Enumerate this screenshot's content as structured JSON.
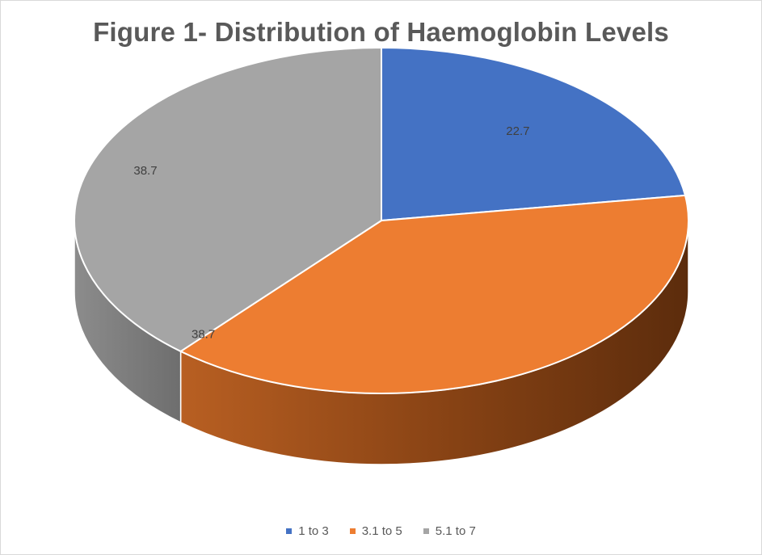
{
  "chart_data": {
    "type": "pie",
    "title": "Figure 1- Distribution of Haemoglobin Levels",
    "categories": [
      "1 to 3",
      "3.1 to 5",
      "5.1 to 7"
    ],
    "values": [
      22.7,
      38.7,
      38.7
    ],
    "data_labels": [
      "22.7",
      "38.7",
      "38.7"
    ],
    "colors": [
      "#4472c4",
      "#ed7d31",
      "#a5a5a5"
    ],
    "side_colors": [
      "#2f4f8a",
      "#8a4212",
      "#737373"
    ],
    "legend_position": "bottom",
    "style": "3d"
  }
}
